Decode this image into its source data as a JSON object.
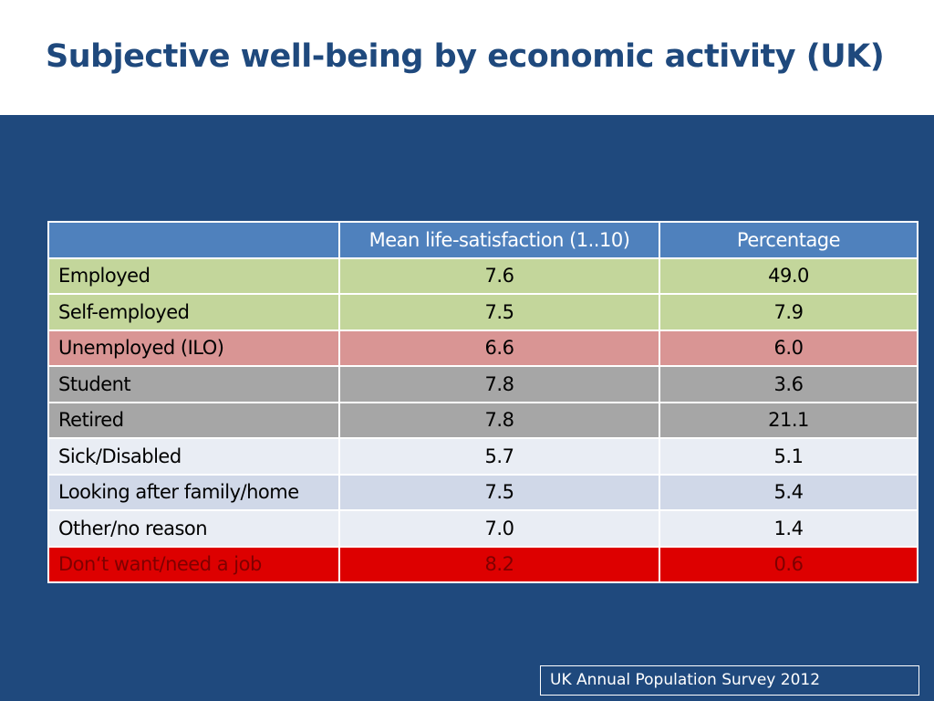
{
  "header": {
    "title": "Subjective well-being by economic activity (UK)"
  },
  "table": {
    "columns": [
      "Mean life-satisfaction (1..10)",
      "Percentage"
    ],
    "rows": [
      [
        "Employed",
        "7.6",
        "49.0"
      ],
      [
        "Self-employed",
        "7.5",
        "7.9"
      ],
      [
        "Unemployed (ILO)",
        "6.6",
        "6.0"
      ],
      [
        "Student",
        "7.8",
        "3.6"
      ],
      [
        "Retired",
        "7.8",
        "21.1"
      ],
      [
        "Sick/Disabled",
        "5.7",
        "5.1"
      ],
      [
        "Looking after family/home",
        "7.5",
        "5.4"
      ],
      [
        "Other/no reason",
        "7.0",
        "1.4"
      ],
      [
        "Don‘t want/need a job",
        "8.2",
        "0.6"
      ]
    ]
  },
  "footer": {
    "source": "UK Annual Population Survey 2012"
  }
}
